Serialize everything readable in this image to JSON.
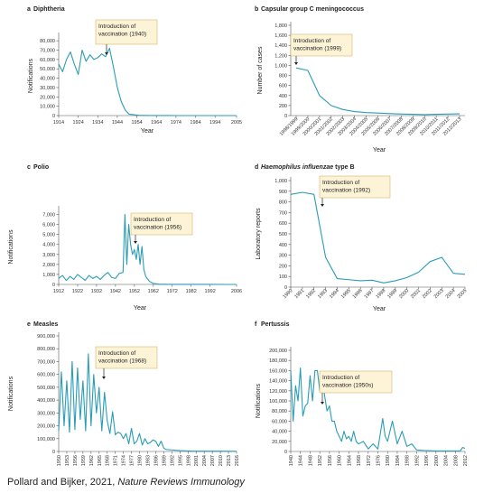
{
  "chart_data": [
    {
      "type": "line",
      "label": "a",
      "title": "Diphtheria",
      "ylabel": "Notifications",
      "xlabel": "Year",
      "color": "#2a9cb6",
      "annotation": [
        "Introduction of",
        "vaccination (1940)"
      ],
      "x": [
        1914,
        1916,
        1918,
        1920,
        1922,
        1924,
        1926,
        1928,
        1930,
        1932,
        1934,
        1936,
        1938,
        1940,
        1942,
        1944,
        1946,
        1948,
        1950,
        1955,
        1960,
        1965,
        1970,
        1975,
        1980,
        1985,
        1990,
        1995,
        2000,
        2005
      ],
      "values": [
        55000,
        47000,
        60000,
        68000,
        55000,
        44000,
        70000,
        58000,
        65000,
        60000,
        62000,
        66000,
        63000,
        72000,
        52000,
        30000,
        15000,
        6000,
        1500,
        300,
        100,
        50,
        20,
        10,
        10,
        5,
        5,
        5,
        5,
        5
      ],
      "xlim": [
        1914,
        2005
      ],
      "xticks": [
        1914,
        1924,
        1934,
        1944,
        1954,
        1964,
        1974,
        1984,
        1994,
        2005
      ],
      "ylim": [
        0,
        85000
      ],
      "yticks": [
        0,
        {
          "value": 10000,
          "label": "10,000"
        },
        {
          "value": 20000,
          "label": "20,000"
        },
        {
          "value": 30000,
          "label": "30,000"
        },
        {
          "value": 40000,
          "label": "40,000"
        },
        {
          "value": 50000,
          "label": "50,000"
        },
        {
          "value": 60000,
          "label": "60,000"
        },
        {
          "value": 70000,
          "label": "70,000"
        },
        {
          "value": 80000,
          "label": "80,000"
        }
      ]
    },
    {
      "type": "line",
      "label": "b",
      "title": "Capsular group C meningococcus",
      "ylabel": "Number of cases",
      "xlabel": "Year",
      "color": "#2a9cb6",
      "annotation": [
        "Introduction of",
        "vaccination (1999)"
      ],
      "categories": [
        "1998/1999",
        "1999/2000",
        "2000/2001",
        "2001/2002",
        "2002/2003",
        "2003/2004",
        "2004/2005",
        "2005/2006",
        "2006/2007",
        "2007/2008",
        "2008/2009",
        "2009/2010",
        "2010/2011",
        "2011/2012",
        "2012/2013"
      ],
      "values": [
        950,
        900,
        400,
        200,
        120,
        80,
        60,
        50,
        40,
        30,
        25,
        20,
        25,
        30,
        35
      ],
      "ylim": [
        0,
        1800
      ],
      "yticks": [
        0,
        200,
        400,
        600,
        800,
        {
          "value": 1000,
          "label": "1,000"
        },
        {
          "value": 1200,
          "label": "1,200"
        },
        {
          "value": 1400,
          "label": "1,400"
        },
        {
          "value": 1600,
          "label": "1,600"
        },
        {
          "value": 1800,
          "label": "1,800"
        }
      ]
    },
    {
      "type": "line",
      "label": "c",
      "title": "Polio",
      "ylabel": "Notifications",
      "xlabel": "Year",
      "color": "#2a9cb6",
      "annotation": [
        "Introduction of",
        "vaccination (1956)"
      ],
      "x": [
        1912,
        1914,
        1916,
        1918,
        1920,
        1922,
        1924,
        1926,
        1928,
        1930,
        1932,
        1934,
        1936,
        1938,
        1940,
        1942,
        1944,
        1946,
        1947,
        1948,
        1949,
        1950,
        1951,
        1952,
        1953,
        1954,
        1955,
        1956,
        1957,
        1958,
        1960,
        1962,
        1965,
        1970,
        1980,
        1990,
        2006
      ],
      "values": [
        600,
        900,
        400,
        800,
        500,
        1000,
        700,
        400,
        900,
        600,
        800,
        500,
        900,
        1200,
        700,
        600,
        1100,
        1200,
        7000,
        2000,
        6000,
        4000,
        3000,
        3500,
        2500,
        4000,
        2000,
        3800,
        1500,
        800,
        300,
        100,
        30,
        10,
        5,
        2,
        0
      ],
      "xlim": [
        1912,
        2006
      ],
      "xticks": [
        1912,
        1922,
        1932,
        1942,
        1952,
        1962,
        1972,
        1982,
        1992,
        2006
      ],
      "ylim": [
        0,
        7500
      ],
      "yticks": [
        0,
        {
          "value": 1000,
          "label": "1,000"
        },
        {
          "value": 2000,
          "label": "2,000"
        },
        {
          "value": 3000,
          "label": "3,000"
        },
        {
          "value": 4000,
          "label": "4,000"
        },
        {
          "value": 5000,
          "label": "5,000"
        },
        {
          "value": 6000,
          "label": "6,000"
        },
        {
          "value": 7000,
          "label": "7,000"
        }
      ]
    },
    {
      "type": "line",
      "label": "d",
      "title_italic": "Haemophilus influenzae",
      "title": "type B",
      "ylabel": "Laboratory reports",
      "xlabel": "Year",
      "color": "#2a9cb6",
      "annotation": [
        "Introduction of",
        "vaccination (1992)"
      ],
      "x": [
        1990,
        1991,
        1992,
        1993,
        1994,
        1995,
        1996,
        1997,
        1998,
        1999,
        2000,
        2001,
        2002,
        2003,
        2004,
        2005
      ],
      "values": [
        870,
        890,
        870,
        280,
        80,
        70,
        60,
        65,
        40,
        60,
        90,
        140,
        240,
        280,
        130,
        120
      ],
      "xlim": [
        1990,
        2005
      ],
      "xticks": [
        1990,
        1991,
        1992,
        1993,
        1994,
        1995,
        1996,
        1997,
        1998,
        1999,
        2000,
        2001,
        2002,
        2003,
        2004,
        2005
      ],
      "ylim": [
        0,
        1000
      ],
      "yticks": [
        0,
        100,
        200,
        300,
        400,
        500,
        600,
        700,
        800,
        900,
        {
          "value": 1000,
          "label": "1,000"
        }
      ]
    },
    {
      "type": "line",
      "label": "e",
      "title": "Measles",
      "ylabel": "Notifications",
      "color": "#2a9cb6",
      "annotation": [
        "Introduction of",
        "vaccination (1968)"
      ],
      "x": [
        1950,
        1951,
        1952,
        1953,
        1954,
        1955,
        1956,
        1957,
        1958,
        1959,
        1960,
        1961,
        1962,
        1963,
        1964,
        1965,
        1966,
        1967,
        1968,
        1969,
        1970,
        1971,
        1972,
        1973,
        1974,
        1975,
        1976,
        1977,
        1978,
        1979,
        1980,
        1981,
        1982,
        1983,
        1984,
        1985,
        1986,
        1987,
        1988,
        1989,
        1990,
        1995,
        2000,
        2005,
        2010,
        2016
      ],
      "values": [
        160000,
        620000,
        200000,
        550000,
        150000,
        700000,
        170000,
        650000,
        250000,
        550000,
        160000,
        760000,
        200000,
        600000,
        300000,
        500000,
        160000,
        460000,
        240000,
        140000,
        310000,
        130000,
        150000,
        140000,
        100000,
        140000,
        60000,
        180000,
        60000,
        80000,
        140000,
        50000,
        100000,
        60000,
        70000,
        90000,
        80000,
        40000,
        80000,
        25000,
        15000,
        7000,
        2000,
        2000,
        2000,
        1000
      ],
      "xlim": [
        1950,
        2016
      ],
      "xticks": [
        1950,
        1953,
        1956,
        1959,
        1962,
        1965,
        1968,
        1971,
        1974,
        1977,
        1980,
        1983,
        1986,
        1989,
        1992,
        1995,
        1998,
        2001,
        2004,
        2007,
        2010,
        2013,
        2016
      ],
      "ylim": [
        0,
        900000
      ],
      "yticks": [
        0,
        {
          "value": 100000,
          "label": "100,000"
        },
        {
          "value": 200000,
          "label": "200,000"
        },
        {
          "value": 300000,
          "label": "300,000"
        },
        {
          "value": 400000,
          "label": "400,000"
        },
        {
          "value": 500000,
          "label": "500,000"
        },
        {
          "value": 600000,
          "label": "600,000"
        },
        {
          "value": 700000,
          "label": "700,000"
        },
        {
          "value": 800000,
          "label": "800,000"
        },
        {
          "value": 900000,
          "label": "900,000"
        }
      ]
    },
    {
      "type": "line",
      "label": "f",
      "title": "Pertussis",
      "ylabel": "Notifications",
      "color": "#2a9cb6",
      "annotation": [
        "Introduction of",
        "vaccination (1950s)"
      ],
      "x": [
        1940,
        1941,
        1942,
        1943,
        1944,
        1945,
        1946,
        1947,
        1948,
        1949,
        1950,
        1951,
        1952,
        1953,
        1954,
        1955,
        1956,
        1957,
        1958,
        1959,
        1960,
        1961,
        1962,
        1963,
        1964,
        1965,
        1966,
        1967,
        1968,
        1970,
        1972,
        1974,
        1976,
        1978,
        1979,
        1980,
        1982,
        1984,
        1986,
        1988,
        1990,
        1992,
        1995,
        2000,
        2005,
        2010,
        2011,
        2012
      ],
      "values": [
        160000,
        60000,
        130000,
        100000,
        165000,
        70000,
        90000,
        95000,
        150000,
        100000,
        160000,
        160000,
        120000,
        150000,
        110000,
        80000,
        90000,
        60000,
        60000,
        40000,
        30000,
        20000,
        40000,
        25000,
        30000,
        20000,
        40000,
        20000,
        15000,
        20000,
        5000,
        15000,
        5000,
        65000,
        30000,
        20000,
        60000,
        15000,
        40000,
        10000,
        15000,
        3000,
        2000,
        1000,
        1000,
        1000,
        8000,
        6000
      ],
      "xlim": [
        1940,
        2012
      ],
      "xticks": [
        1940,
        1944,
        1948,
        1952,
        1956,
        1960,
        1964,
        1968,
        1972,
        1976,
        1980,
        1984,
        1988,
        1992,
        1996,
        2000,
        2004,
        2008,
        2012
      ],
      "ylim": [
        0,
        200000
      ],
      "yticks": [
        0,
        {
          "value": 20000,
          "label": "20,000"
        },
        {
          "value": 40000,
          "label": "40,000"
        },
        {
          "value": 60000,
          "label": "60,000"
        },
        {
          "value": 80000,
          "label": "80,000"
        },
        {
          "value": 100000,
          "label": "100,000"
        },
        {
          "value": 120000,
          "label": "120,000"
        },
        {
          "value": 140000,
          "label": "140,000"
        },
        {
          "value": 160000,
          "label": "160,000"
        },
        {
          "value": 180000,
          "label": "180,000"
        },
        {
          "value": 200000,
          "label": "200,000"
        }
      ]
    }
  ],
  "caption": {
    "text": "Pollard and Bijker, 2021, ",
    "journal": "Nature Reviews Immunology"
  }
}
